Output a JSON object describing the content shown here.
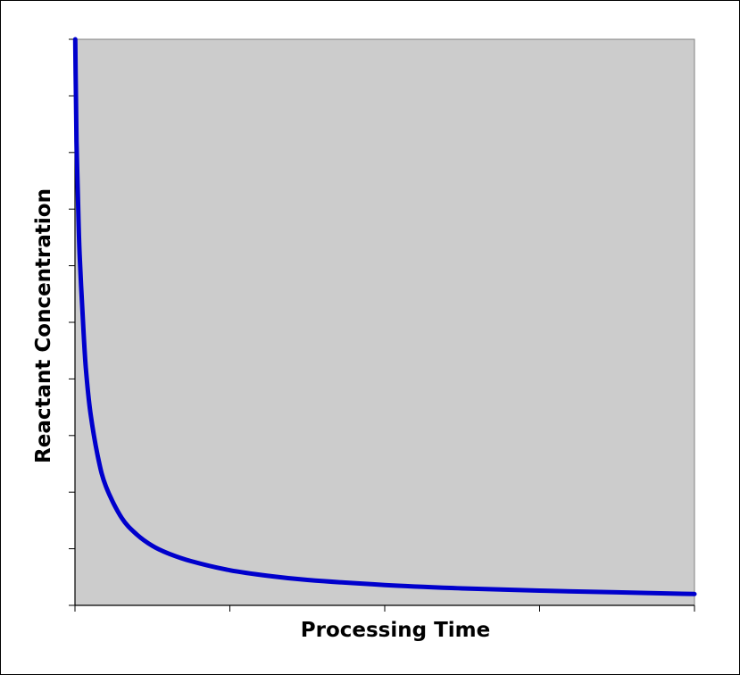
{
  "chart_data": {
    "type": "line",
    "title": "",
    "xlabel": "Processing Time",
    "ylabel": "Reactant Concentration",
    "xlim": [
      0,
      4
    ],
    "ylim": [
      0,
      10
    ],
    "x_ticks": 4,
    "y_ticks": 10,
    "tick_labels_shown": false,
    "grid": false,
    "legend": "none",
    "plot_background": "#cccccc",
    "series": [
      {
        "color": "#0000cc",
        "points": [
          [
            0.002,
            10.0
          ],
          [
            0.005,
            9.2
          ],
          [
            0.01,
            8.2
          ],
          [
            0.02,
            7.1
          ],
          [
            0.03,
            6.2
          ],
          [
            0.05,
            5.1
          ],
          [
            0.07,
            4.2
          ],
          [
            0.1,
            3.4
          ],
          [
            0.15,
            2.6
          ],
          [
            0.2,
            2.1
          ],
          [
            0.3,
            1.55
          ],
          [
            0.4,
            1.25
          ],
          [
            0.5,
            1.05
          ],
          [
            0.6,
            0.92
          ],
          [
            0.75,
            0.78
          ],
          [
            1.0,
            0.62
          ],
          [
            1.25,
            0.52
          ],
          [
            1.5,
            0.45
          ],
          [
            2.0,
            0.36
          ],
          [
            2.5,
            0.3
          ],
          [
            3.0,
            0.26
          ],
          [
            3.5,
            0.23
          ],
          [
            4.0,
            0.2
          ]
        ]
      }
    ]
  }
}
